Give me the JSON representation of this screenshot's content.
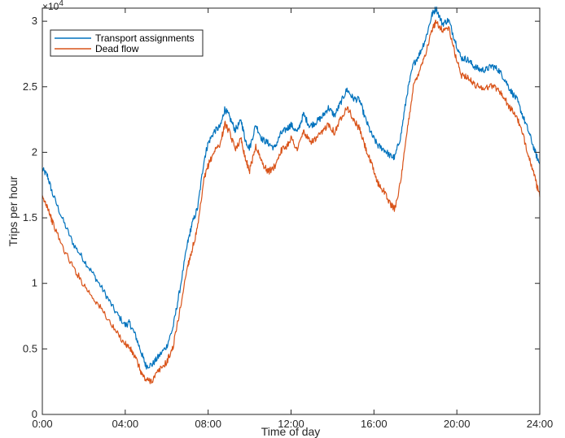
{
  "chart_data": {
    "type": "line",
    "title": "",
    "xlabel": "Time of day",
    "ylabel": "Trips per hour",
    "y_multiplier_label": "×10",
    "y_multiplier_exp": "4",
    "xlim": [
      0,
      24
    ],
    "ylim": [
      0,
      31000
    ],
    "x_ticks": [
      {
        "value": 0,
        "label": "0:00"
      },
      {
        "value": 4,
        "label": "04:00"
      },
      {
        "value": 8,
        "label": "08:00"
      },
      {
        "value": 12,
        "label": "12:00"
      },
      {
        "value": 16,
        "label": "16:00"
      },
      {
        "value": 20,
        "label": "20:00"
      },
      {
        "value": 24,
        "label": "24:00"
      }
    ],
    "y_ticks": [
      {
        "value": 0,
        "label": "0"
      },
      {
        "value": 5000,
        "label": "0.5"
      },
      {
        "value": 10000,
        "label": "1"
      },
      {
        "value": 15000,
        "label": "1.5"
      },
      {
        "value": 20000,
        "label": "2"
      },
      {
        "value": 25000,
        "label": "2.5"
      },
      {
        "value": 30000,
        "label": "3"
      }
    ],
    "grid": false,
    "legend_position": "top-left",
    "series": [
      {
        "name": "Transport assignments",
        "color": "#0072BD",
        "x": [
          0,
          0.25,
          0.5,
          1,
          1.5,
          2,
          2.5,
          3,
          3.5,
          4,
          4.2,
          4.5,
          4.8,
          5,
          5.3,
          5.6,
          6,
          6.3,
          6.6,
          7,
          7.2,
          7.5,
          7.8,
          8,
          8.3,
          8.6,
          8.8,
          9,
          9.3,
          9.6,
          9.8,
          10,
          10.3,
          10.6,
          10.9,
          11.2,
          11.5,
          11.8,
          12,
          12.3,
          12.6,
          12.9,
          13.2,
          13.5,
          13.8,
          14.1,
          14.4,
          14.7,
          15,
          15.3,
          15.6,
          15.9,
          16.2,
          16.5,
          16.8,
          17,
          17.3,
          17.6,
          17.9,
          18.2,
          18.5,
          18.8,
          19,
          19.3,
          19.6,
          19.9,
          20.2,
          20.5,
          20.8,
          21.1,
          21.4,
          21.7,
          22,
          22.3,
          22.6,
          22.9,
          23.2,
          23.5,
          23.8,
          24
        ],
        "y": [
          18700,
          18200,
          16800,
          14800,
          13000,
          11800,
          10600,
          9300,
          7900,
          6800,
          7000,
          6000,
          4600,
          3700,
          3800,
          4400,
          5200,
          6600,
          9200,
          13000,
          14400,
          15800,
          19400,
          20700,
          21600,
          22000,
          23300,
          22800,
          21700,
          22400,
          20900,
          20300,
          22100,
          21000,
          20700,
          20300,
          21400,
          21800,
          22100,
          21500,
          22900,
          22000,
          22300,
          22700,
          23400,
          22800,
          23800,
          24800,
          24100,
          24000,
          22500,
          21300,
          20500,
          20200,
          19700,
          19600,
          21300,
          24500,
          26700,
          27500,
          28700,
          30500,
          31000,
          29800,
          30100,
          28600,
          27200,
          27100,
          26600,
          26300,
          26300,
          26600,
          26300,
          25600,
          24700,
          24000,
          22700,
          21400,
          19900,
          19100
        ]
      },
      {
        "name": "Dead flow",
        "color": "#D95319",
        "x": [
          0,
          0.25,
          0.5,
          1,
          1.5,
          2,
          2.5,
          3,
          3.5,
          4,
          4.2,
          4.5,
          4.8,
          5,
          5.3,
          5.6,
          6,
          6.3,
          6.6,
          7,
          7.2,
          7.5,
          7.8,
          8,
          8.3,
          8.6,
          8.8,
          9,
          9.3,
          9.6,
          9.8,
          10,
          10.3,
          10.6,
          10.9,
          11.2,
          11.5,
          11.8,
          12,
          12.3,
          12.6,
          12.9,
          13.2,
          13.5,
          13.8,
          14.1,
          14.4,
          14.7,
          15,
          15.3,
          15.6,
          15.9,
          16.2,
          16.5,
          16.8,
          17,
          17.3,
          17.6,
          17.9,
          18.2,
          18.5,
          18.8,
          19,
          19.3,
          19.6,
          19.9,
          20.2,
          20.5,
          20.8,
          21.1,
          21.4,
          21.7,
          22,
          22.3,
          22.6,
          22.9,
          23.2,
          23.5,
          23.8,
          24
        ],
        "y": [
          16500,
          15900,
          14600,
          12700,
          11200,
          9900,
          8800,
          7700,
          6400,
          5400,
          5100,
          4300,
          3100,
          2600,
          2600,
          3300,
          4000,
          5100,
          7600,
          11300,
          12400,
          14300,
          17900,
          19000,
          20100,
          20700,
          22200,
          21600,
          20300,
          21000,
          19500,
          18600,
          20500,
          19200,
          18500,
          18900,
          20100,
          20500,
          21100,
          20200,
          21600,
          20800,
          21000,
          21500,
          22200,
          21500,
          22600,
          23500,
          22500,
          21800,
          20300,
          19000,
          17600,
          17000,
          16000,
          15700,
          17800,
          21600,
          25000,
          26300,
          27600,
          29300,
          30000,
          29300,
          29500,
          27600,
          25900,
          25800,
          25200,
          25000,
          24900,
          25100,
          24800,
          24100,
          23300,
          22700,
          21200,
          19600,
          17800,
          16600
        ]
      }
    ]
  }
}
